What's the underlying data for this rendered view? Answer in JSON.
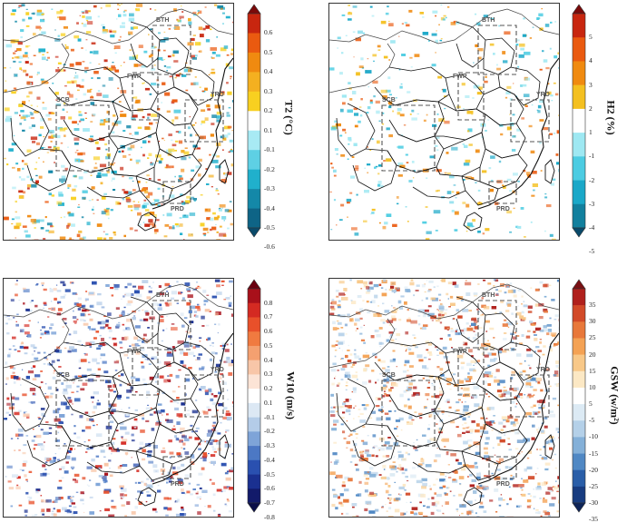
{
  "panels": [
    {
      "id": "t2",
      "colorbar_label": "T2 (°C)",
      "ticks": [
        "0.6",
        "0.5",
        "0.4",
        "0.3",
        "0.2",
        "0.1",
        "-0.1",
        "-0.2",
        "-0.3",
        "-0.4",
        "-0.5",
        "-0.6"
      ],
      "colors": [
        "#7a0a0a",
        "#c8260f",
        "#ea5a10",
        "#f08a10",
        "#f4b020",
        "#f8d020",
        "#ffffff",
        "#a8eaf4",
        "#5ed0e4",
        "#20b0cc",
        "#1488a8",
        "#0e6486",
        "#0a4a6a"
      ],
      "region_labels": [
        "BTH",
        "FWP",
        "SCB",
        "YRD",
        "PRD"
      ]
    },
    {
      "id": "rh2",
      "colorbar_label": "H2 (%)",
      "ticks": [
        "5",
        "4",
        "3",
        "2",
        "1",
        "-1",
        "-2",
        "-3",
        "-4",
        "-5"
      ],
      "colors": [
        "#7a0a0a",
        "#c8260f",
        "#ea5a10",
        "#f08a10",
        "#f4c020",
        "#ffffff",
        "#9ee8f2",
        "#4ccce2",
        "#1aa8c8",
        "#12809e",
        "#0a4a6a"
      ],
      "region_labels": [
        "BTH",
        "FWP",
        "SCB",
        "YRD",
        "PRD"
      ]
    },
    {
      "id": "w10",
      "colorbar_label": "W10 (m/s)",
      "ticks": [
        "0.8",
        "0.7",
        "0.6",
        "0.5",
        "0.4",
        "0.3",
        "0.2",
        "0.1",
        "-0.1",
        "-0.2",
        "-0.3",
        "-0.4",
        "-0.5",
        "-0.6",
        "-0.7",
        "-0.8"
      ],
      "colors": [
        "#6a0010",
        "#a8101a",
        "#d42a22",
        "#e8502a",
        "#f07a40",
        "#f4a070",
        "#f8c6a8",
        "#fce4d6",
        "#ffffff",
        "#dce8f4",
        "#b4cce8",
        "#7ea4d8",
        "#4c78c4",
        "#2a50b0",
        "#1a3090",
        "#121a6a",
        "#0a0e48"
      ],
      "region_labels": [
        "BTH",
        "FWP",
        "SCB",
        "YRD",
        "PRD"
      ]
    },
    {
      "id": "gsw",
      "colorbar_label": "GSW (w/m²)",
      "ticks": [
        "35",
        "30",
        "25",
        "20",
        "15",
        "10",
        "5",
        "-5",
        "-10",
        "-15",
        "-20",
        "-25",
        "-30",
        "-35"
      ],
      "colors": [
        "#7a1014",
        "#b0201c",
        "#d24a28",
        "#e8783a",
        "#f4a254",
        "#f8c888",
        "#fce8c4",
        "#ffffff",
        "#dceaf4",
        "#b4d0e8",
        "#84b0d8",
        "#5088c4",
        "#2a5ea8",
        "#183c80",
        "#0e2458"
      ],
      "region_labels": [
        "BTH",
        "FWP",
        "SCB",
        "YRD",
        "PRD"
      ]
    }
  ]
}
